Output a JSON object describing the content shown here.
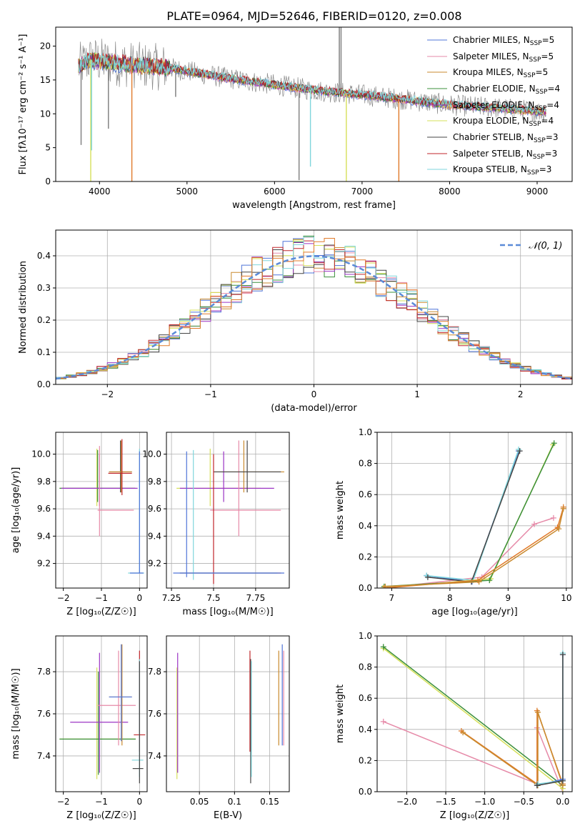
{
  "figure": {
    "title": "PLATE=0964, MJD=52646, FIBERID=0120, z=0.008"
  },
  "colors": {
    "Chabrier MILES": "#4f74d8",
    "Salpeter MILES": "#e68aa8",
    "Kroupa MILES": "#c98a2e",
    "Chabrier ELODIE": "#3b8f3b",
    "Salpeter ELODIE": "#9b34c4",
    "Kroupa ELODIE": "#d6e05a",
    "Chabrier STELIB": "#444444",
    "Salpeter STELIB": "#c0262b",
    "Kroupa STELIB": "#7fd6dc",
    "data": "#8a8a8a",
    "orange": "#e07a2a",
    "gaussian": "#5b8bd8"
  },
  "chart_data": [
    {
      "id": "spectrum",
      "type": "line",
      "title": "PLATE=0964, MJD=52646, FIBERID=0120, z=0.008",
      "xlabel": "wavelength [Angstrom, rest frame]",
      "ylabel": "Flux [fλ10⁻¹⁷ erg cm⁻² s⁻¹ A⁻¹]",
      "xlim": [
        3500,
        9400
      ],
      "ylim": [
        0,
        22.8
      ],
      "xticks": [
        4000,
        5000,
        6000,
        7000,
        8000,
        9000
      ],
      "yticks": [
        0,
        5,
        10,
        15,
        20
      ],
      "grid": false,
      "legend_position": "top-right",
      "legend": [
        "Chabrier MILES, N_SSP=5",
        "Salpeter MILES, N_SSP=5",
        "Kroupa MILES, N_SSP=5",
        "Chabrier ELODIE, N_SSP=4",
        "Salpeter ELODIE, N_SSP=4",
        "Kroupa ELODIE, N_SSP=4",
        "Chabrier STELIB, N_SSP=3",
        "Salpeter STELIB, N_SSP=3",
        "Kroupa STELIB, N_SSP=3"
      ],
      "continuum": {
        "x": [
          3760,
          3900,
          4000,
          4200,
          4400,
          4600,
          4800,
          5000,
          5300,
          5600,
          6000,
          6500,
          7000,
          7500,
          8000,
          8500,
          9000,
          9100
        ],
        "y": [
          17.0,
          18.0,
          17.8,
          17.5,
          17.2,
          17.0,
          16.8,
          16.3,
          15.6,
          15.0,
          14.3,
          13.4,
          12.8,
          12.1,
          11.3,
          10.9,
          10.4,
          10.3
        ]
      },
      "features": {
        "data_spikes": [
          [
            3790,
            5.4
          ],
          [
            4102,
            7.8
          ],
          [
            4870,
            12.5
          ],
          [
            6280,
            0.2
          ],
          [
            6740,
            22.8
          ],
          [
            6760,
            22.8
          ]
        ],
        "model_dips": [
          [
            3900,
            0.0
          ],
          [
            3910,
            4.6
          ],
          [
            4370,
            0.0
          ],
          [
            6410,
            2.2
          ],
          [
            6820,
            0.0
          ],
          [
            7420,
            0.0
          ]
        ]
      }
    },
    {
      "id": "residuals",
      "type": "step",
      "xlabel": "(data-model)/error",
      "ylabel": "Normed distribution",
      "xlim": [
        -2.5,
        2.5
      ],
      "ylim": [
        0,
        0.48
      ],
      "xticks": [
        -2,
        -1,
        0,
        1,
        2
      ],
      "yticks": [
        0.0,
        0.1,
        0.2,
        0.3,
        0.4
      ],
      "grid": true,
      "legend_position": "top-right",
      "legend": [
        "𝒩(0, 1)"
      ],
      "bin_width": 0.1
    },
    {
      "id": "age-vs-Z",
      "type": "errorbar",
      "xlabel": "Z [log₁₀(Z/Z☉)]",
      "ylabel": "age  [log₁₀(age/yr)]",
      "xlim": [
        -2.2,
        0.2
      ],
      "ylim": [
        9.02,
        10.16
      ],
      "xticks": [
        -2,
        -1,
        0
      ],
      "yticks": [
        9.2,
        9.4,
        9.6,
        9.8,
        10.0
      ],
      "grid": true,
      "points": [
        {
          "x": -1.12,
          "y": 9.75,
          "xl": -2.1,
          "xh": -0.1,
          "yl": 9.62,
          "yh": 10.04,
          "c": "Kroupa ELODIE"
        },
        {
          "x": -1.1,
          "y": 9.75,
          "xl": -2.1,
          "xh": -0.12,
          "yl": 9.65,
          "yh": 10.03,
          "c": "Chabrier ELODIE"
        },
        {
          "x": -1.05,
          "y": 9.75,
          "xl": -2.05,
          "xh": -0.05,
          "yl": 9.62,
          "yh": 10.0,
          "c": "Salpeter ELODIE"
        },
        {
          "x": -1.05,
          "y": 9.59,
          "xl": -1.1,
          "xh": -0.15,
          "yl": 9.4,
          "yh": 10.06,
          "c": "Salpeter MILES"
        },
        {
          "x": -0.5,
          "y": 9.87,
          "xl": -0.8,
          "xh": -0.2,
          "yl": 9.72,
          "yh": 10.1,
          "c": "Chabrier STELIB"
        },
        {
          "x": -0.48,
          "y": 9.87,
          "xl": -0.8,
          "xh": -0.2,
          "yl": 9.72,
          "yh": 10.1,
          "c": "Kroupa MILES"
        },
        {
          "x": -0.46,
          "y": 9.86,
          "xl": -0.82,
          "xh": -0.2,
          "yl": 9.7,
          "yh": 10.11,
          "c": "Salpeter STELIB"
        },
        {
          "x": 0.0,
          "y": 9.13,
          "xl": -0.3,
          "xh": 0.12,
          "yl": 9.13,
          "yh": 10.04,
          "c": "Kroupa STELIB"
        },
        {
          "x": 0.0,
          "y": 9.13,
          "xl": -0.25,
          "xh": 0.1,
          "yl": 9.13,
          "yh": 10.02,
          "c": "Chabrier MILES"
        }
      ]
    },
    {
      "id": "age-vs-mass",
      "type": "errorbar",
      "xlabel": "mass [log₁₀(M/M☉)]",
      "ylabel": "",
      "xlim": [
        7.22,
        7.95
      ],
      "ylim": [
        9.02,
        10.16
      ],
      "xticks": [
        7.25,
        7.5,
        7.75
      ],
      "yticks": [
        9.2,
        9.4,
        9.6,
        9.8,
        10.0
      ],
      "grid": true,
      "points": [
        {
          "x": 7.48,
          "y": 9.75,
          "xl": 7.28,
          "xh": 7.78,
          "yl": 9.62,
          "yh": 10.04,
          "c": "Kroupa ELODIE"
        },
        {
          "x": 7.56,
          "y": 9.75,
          "xl": 7.3,
          "xh": 7.86,
          "yl": 9.65,
          "yh": 10.02,
          "c": "Salpeter ELODIE"
        },
        {
          "x": 7.65,
          "y": 9.59,
          "xl": 7.48,
          "xh": 7.9,
          "yl": 9.4,
          "yh": 10.1,
          "c": "Salpeter MILES"
        },
        {
          "x": 7.68,
          "y": 9.87,
          "xl": 7.5,
          "xh": 7.92,
          "yl": 9.72,
          "yh": 10.1,
          "c": "Kroupa MILES"
        },
        {
          "x": 7.7,
          "y": 9.87,
          "xl": 7.5,
          "xh": 7.9,
          "yl": 9.72,
          "yh": 10.1,
          "c": "Chabrier STELIB"
        },
        {
          "x": 7.5,
          "y": 9.13,
          "xl": 7.3,
          "xh": 7.9,
          "yl": 9.05,
          "yh": 10.0,
          "c": "Salpeter STELIB"
        },
        {
          "x": 7.38,
          "y": 9.13,
          "xl": 7.3,
          "xh": 7.88,
          "yl": 9.08,
          "yh": 10.03,
          "c": "Kroupa STELIB"
        },
        {
          "x": 7.34,
          "y": 9.13,
          "xl": 7.26,
          "xh": 7.92,
          "yl": 9.1,
          "yh": 10.02,
          "c": "Chabrier MILES"
        }
      ]
    },
    {
      "id": "weight-vs-age",
      "type": "line",
      "xlabel": "age  [log₁₀(age/yr)]",
      "ylabel": "mass weight",
      "xlim": [
        6.75,
        10.1
      ],
      "ylim": [
        0,
        1
      ],
      "xticks": [
        7,
        8,
        9,
        10
      ],
      "yticks": [
        0.0,
        0.2,
        0.4,
        0.6,
        0.8,
        1.0
      ],
      "grid": true,
      "series": [
        {
          "c": "Salpeter MILES",
          "x": [
            6.85,
            8.55,
            9.45,
            9.78
          ],
          "y": [
            0.0,
            0.07,
            0.41,
            0.45
          ]
        },
        {
          "c": "Chabrier MILES",
          "x": [
            7.6,
            8.38,
            9.18
          ],
          "y": [
            0.08,
            0.04,
            0.88
          ]
        },
        {
          "c": "Kroupa STELIB",
          "x": [
            7.6,
            8.4,
            9.18
          ],
          "y": [
            0.08,
            0.05,
            0.89
          ]
        },
        {
          "c": "Chabrier STELIB",
          "x": [
            7.62,
            8.37,
            9.2
          ],
          "y": [
            0.07,
            0.04,
            0.88
          ]
        },
        {
          "c": "Kroupa ELODIE",
          "x": [
            6.85,
            8.7,
            9.77
          ],
          "y": [
            0.0,
            0.06,
            0.92
          ]
        },
        {
          "c": "Chabrier ELODIE",
          "x": [
            6.87,
            8.68,
            9.79
          ],
          "y": [
            0.01,
            0.05,
            0.93
          ]
        },
        {
          "c": "orange",
          "x": [
            6.87,
            8.48,
            9.85,
            9.95
          ],
          "y": [
            0.0,
            0.05,
            0.39,
            0.52
          ]
        },
        {
          "c": "Kroupa MILES",
          "x": [
            6.89,
            8.5,
            9.87,
            9.95
          ],
          "y": [
            0.01,
            0.04,
            0.38,
            0.51
          ]
        }
      ]
    },
    {
      "id": "mass-vs-Z",
      "type": "errorbar",
      "xlabel": "Z [log₁₀(Z/Z☉)]",
      "ylabel": "mass [log₁₀(M/M☉)]",
      "xlim": [
        -2.2,
        0.2
      ],
      "ylim": [
        7.23,
        7.97
      ],
      "xticks": [
        -2,
        -1,
        0
      ],
      "yticks": [
        7.4,
        7.6,
        7.8
      ],
      "grid": true,
      "points": [
        {
          "x": -1.12,
          "y": 7.48,
          "xl": -2.1,
          "xh": -0.1,
          "yl": 7.29,
          "yh": 7.82,
          "c": "Kroupa ELODIE"
        },
        {
          "x": -1.08,
          "y": 7.48,
          "xl": -2.1,
          "xh": -0.1,
          "yl": 7.31,
          "yh": 7.8,
          "c": "Chabrier ELODIE"
        },
        {
          "x": -1.05,
          "y": 7.56,
          "xl": -1.82,
          "xh": -0.3,
          "yl": 7.32,
          "yh": 7.89,
          "c": "Salpeter ELODIE"
        },
        {
          "x": -0.55,
          "y": 7.64,
          "xl": -1.1,
          "xh": -0.1,
          "yl": 7.45,
          "yh": 7.9,
          "c": "Salpeter MILES"
        },
        {
          "x": -0.46,
          "y": 7.68,
          "xl": -0.8,
          "xh": -0.2,
          "yl": 7.45,
          "yh": 7.93,
          "c": "Kroupa MILES"
        },
        {
          "x": -0.48,
          "y": 7.68,
          "xl": -0.8,
          "xh": -0.2,
          "yl": 7.47,
          "yh": 7.93,
          "c": "Chabrier MILES"
        },
        {
          "x": 0.0,
          "y": 7.5,
          "xl": -0.15,
          "xh": 0.15,
          "yl": 7.42,
          "yh": 7.9,
          "c": "Salpeter STELIB"
        },
        {
          "x": 0.0,
          "y": 7.38,
          "xl": -0.2,
          "xh": 0.1,
          "yl": 7.3,
          "yh": 7.86,
          "c": "Kroupa STELIB"
        },
        {
          "x": 0.0,
          "y": 7.34,
          "xl": -0.18,
          "xh": 0.1,
          "yl": 7.27,
          "yh": 7.85,
          "c": "Chabrier STELIB"
        }
      ]
    },
    {
      "id": "mass-vs-EBV",
      "type": "errorbar",
      "xlabel": "E(B-V)",
      "ylabel": "",
      "xlim": [
        0.003,
        0.178
      ],
      "ylim": [
        7.23,
        7.97
      ],
      "xticks": [
        0.05,
        0.1,
        0.15
      ],
      "yticks": [
        7.4,
        7.6,
        7.8
      ],
      "grid": true,
      "points": [
        {
          "x": 0.018,
          "y": 7.48,
          "xl": 0.018,
          "xh": 0.018,
          "yl": 7.29,
          "yh": 7.82,
          "c": "Kroupa ELODIE"
        },
        {
          "x": 0.019,
          "y": 7.56,
          "xl": 0.019,
          "xh": 0.019,
          "yl": 7.32,
          "yh": 7.89,
          "c": "Salpeter ELODIE"
        },
        {
          "x": 0.122,
          "y": 7.5,
          "xl": 0.122,
          "xh": 0.122,
          "yl": 7.42,
          "yh": 7.9,
          "c": "Salpeter STELIB"
        },
        {
          "x": 0.123,
          "y": 7.38,
          "xl": 0.123,
          "xh": 0.123,
          "yl": 7.27,
          "yh": 7.86,
          "c": "Chabrier STELIB"
        },
        {
          "x": 0.124,
          "y": 7.38,
          "xl": 0.124,
          "xh": 0.124,
          "yl": 7.3,
          "yh": 7.85,
          "c": "Kroupa STELIB"
        },
        {
          "x": 0.163,
          "y": 7.64,
          "xl": 0.163,
          "xh": 0.163,
          "yl": 7.45,
          "yh": 7.9,
          "c": "Kroupa MILES"
        },
        {
          "x": 0.168,
          "y": 7.68,
          "xl": 0.168,
          "xh": 0.168,
          "yl": 7.45,
          "yh": 7.93,
          "c": "Chabrier MILES"
        },
        {
          "x": 0.17,
          "y": 7.64,
          "xl": 0.17,
          "xh": 0.17,
          "yl": 7.45,
          "yh": 7.9,
          "c": "Salpeter MILES"
        }
      ]
    },
    {
      "id": "weight-vs-Z",
      "type": "line",
      "xlabel": "Z [log₁₀(Z/Z☉)]",
      "ylabel": "mass weight",
      "xlim": [
        -2.38,
        0.12
      ],
      "ylim": [
        0,
        1
      ],
      "xticks": [
        -2.0,
        -1.5,
        -1.0,
        -0.5,
        0.0
      ],
      "yticks": [
        0.0,
        0.2,
        0.4,
        0.6,
        0.8,
        1.0
      ],
      "grid": true,
      "series": [
        {
          "c": "Salpeter MILES",
          "x": [
            -2.3,
            -0.33,
            -0.33,
            0.0
          ],
          "y": [
            0.45,
            0.05,
            0.41,
            0.0
          ]
        },
        {
          "c": "Kroupa ELODIE",
          "x": [
            -2.3,
            0.0
          ],
          "y": [
            0.92,
            0.02
          ]
        },
        {
          "c": "Chabrier ELODIE",
          "x": [
            -2.3,
            0.0
          ],
          "y": [
            0.93,
            0.04
          ]
        },
        {
          "c": "orange",
          "x": [
            -1.3,
            -0.33,
            -0.33,
            0.0
          ],
          "y": [
            0.39,
            0.05,
            0.52,
            0.05
          ]
        },
        {
          "c": "Kroupa MILES",
          "x": [
            -1.28,
            -0.32,
            -0.32,
            0.0
          ],
          "y": [
            0.38,
            0.04,
            0.51,
            0.04
          ]
        },
        {
          "c": "Chabrier MILES",
          "x": [
            -0.33,
            0.0,
            0.0
          ],
          "y": [
            0.04,
            0.08,
            0.88
          ]
        },
        {
          "c": "Kroupa STELIB",
          "x": [
            -0.32,
            0.0,
            0.0
          ],
          "y": [
            0.05,
            0.07,
            0.89
          ]
        },
        {
          "c": "Chabrier STELIB",
          "x": [
            -0.33,
            0.0,
            0.0
          ],
          "y": [
            0.04,
            0.07,
            0.88
          ]
        }
      ]
    }
  ]
}
